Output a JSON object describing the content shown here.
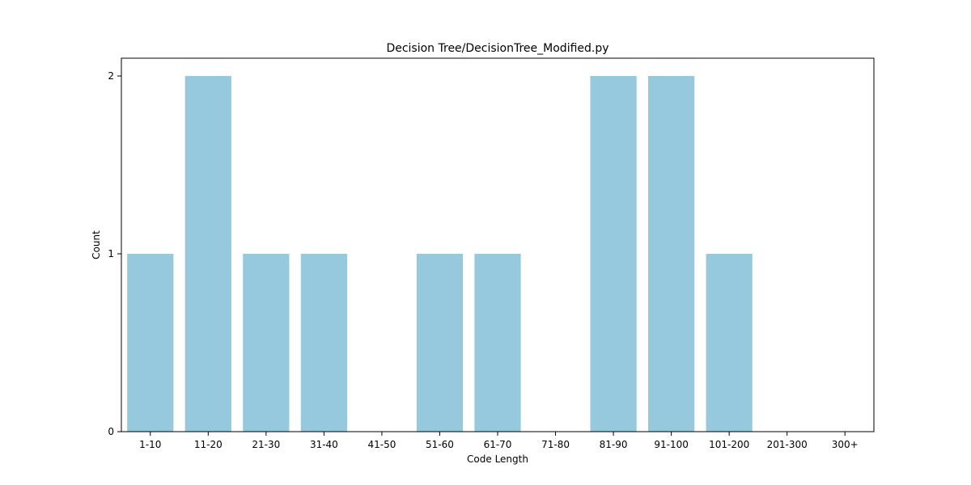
{
  "chart_data": {
    "type": "bar",
    "title": "Decision Tree/DecisionTree_Modified.py",
    "xlabel": "Code Length",
    "ylabel": "Count",
    "categories": [
      "1-10",
      "11-20",
      "21-30",
      "31-40",
      "41-50",
      "51-60",
      "61-70",
      "71-80",
      "81-90",
      "91-100",
      "101-200",
      "201-300",
      "300+"
    ],
    "values": [
      1,
      2,
      1,
      1,
      0,
      1,
      1,
      0,
      2,
      2,
      1,
      0,
      0
    ],
    "ylim": [
      0,
      2.1
    ],
    "yticks": [
      0,
      1,
      2
    ],
    "bar_color": "#96c9de",
    "grid": false
  }
}
